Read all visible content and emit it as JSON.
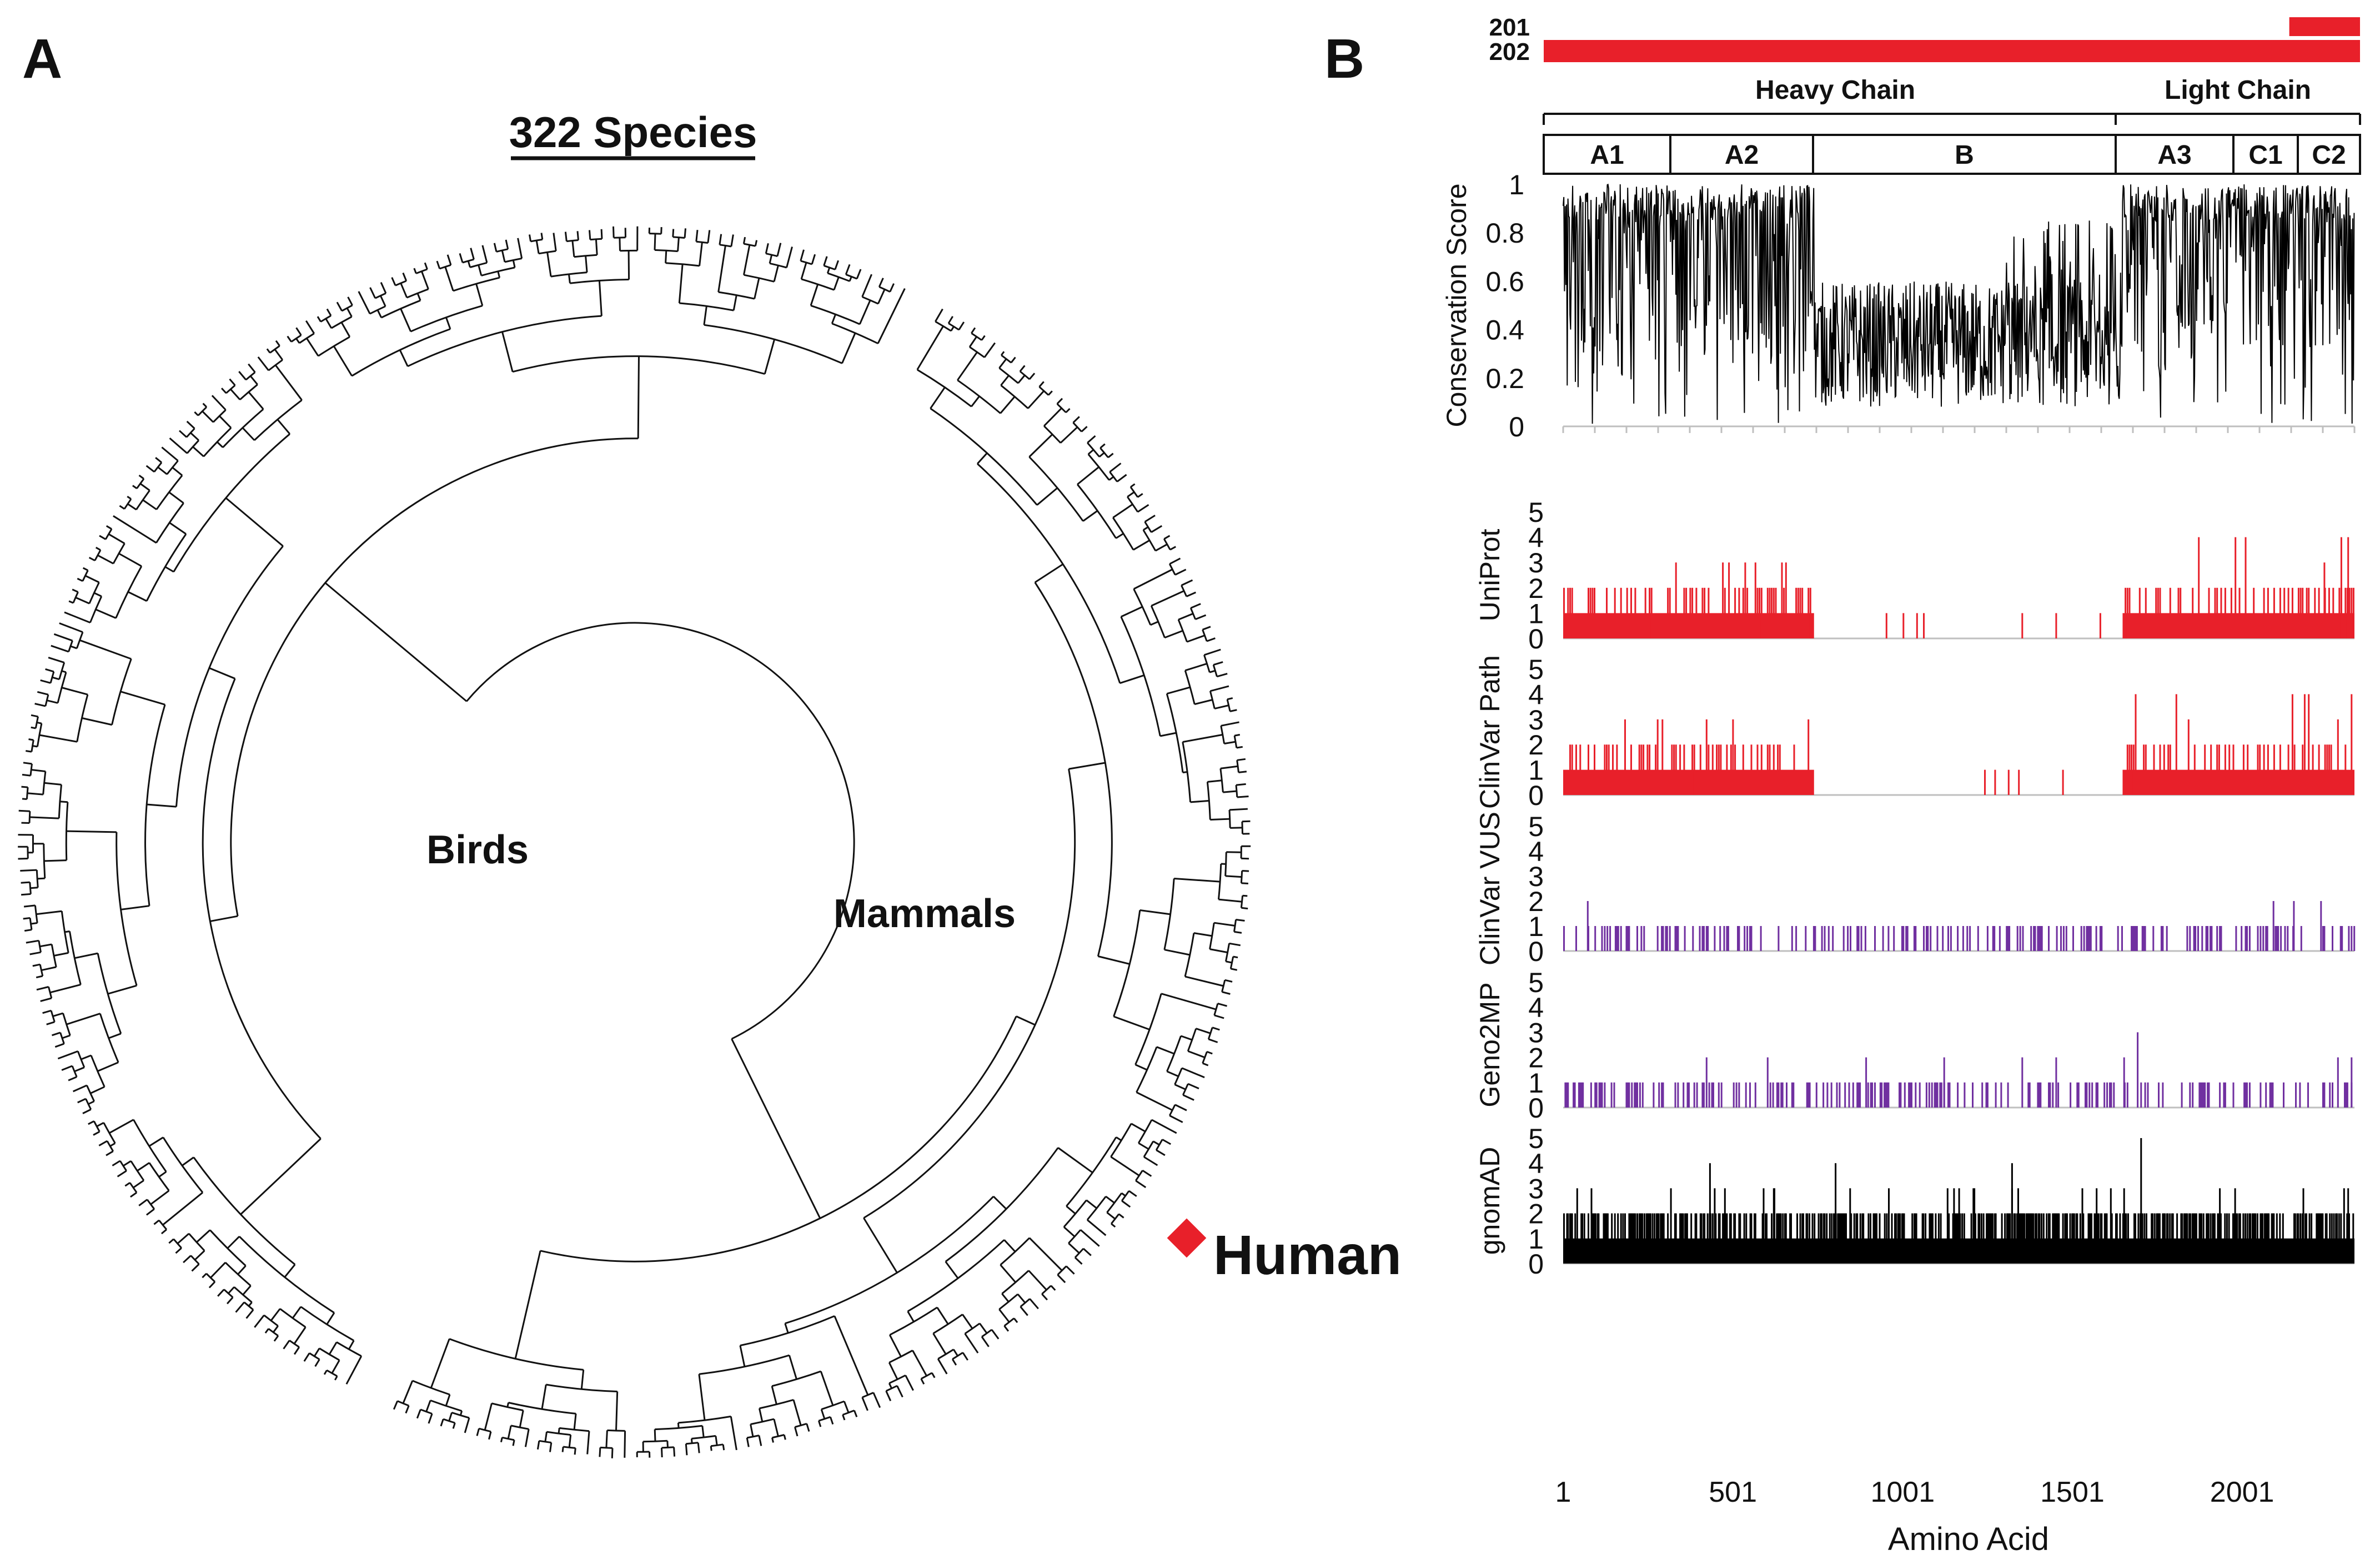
{
  "panel_a": {
    "label": "A",
    "title": "322 Species",
    "group_birds": "Birds",
    "group_mammals": "Mammals",
    "highlight_label": "Human",
    "highlight_color": "#e8202a"
  },
  "panel_b": {
    "label": "B",
    "isoforms": [
      {
        "name": "201",
        "start": 2140,
        "end": 2332
      },
      {
        "name": "202",
        "start": 1,
        "end": 2332
      }
    ],
    "chains": [
      {
        "name": "Heavy Chain",
        "start": 1,
        "end": 1648
      },
      {
        "name": "Light Chain",
        "start": 1649,
        "end": 2332
      }
    ],
    "domains": [
      {
        "name": "A1",
        "start": 1,
        "end": 372
      },
      {
        "name": "A2",
        "start": 373,
        "end": 740
      },
      {
        "name": "B",
        "start": 741,
        "end": 1648
      },
      {
        "name": "A3",
        "start": 1649,
        "end": 2019
      },
      {
        "name": "C1",
        "start": 2020,
        "end": 2172
      },
      {
        "name": "C2",
        "start": 2173,
        "end": 2332
      }
    ],
    "colors": {
      "red": "#e8202a",
      "purple": "#7030a0",
      "black": "#000000",
      "axis": "#bfbfbf"
    }
  },
  "chart_data": [
    {
      "type": "line",
      "title": "",
      "ylabel": "Conservation Score",
      "xlabel": "",
      "ylim": [
        0,
        1
      ],
      "yticks": [
        "0",
        "0.2",
        "0.4",
        "0.6",
        "0.8",
        "1"
      ],
      "xlim": [
        1,
        2332
      ],
      "series": [
        {
          "name": "Conservation Score",
          "note": "per-residue conservation, ~0.4-1.0 in A1/A2/A3/C1/C2, ~0.1-0.6 in B domain"
        }
      ]
    },
    {
      "type": "bar",
      "ylabel": "UniProt",
      "ylim": [
        0,
        5
      ],
      "yticks": [
        "0",
        "1",
        "2",
        "3",
        "4",
        "5"
      ],
      "color": "#e8202a",
      "regions": [
        [
          1,
          740,
          1,
          3
        ],
        [
          1649,
          2332,
          1,
          4
        ]
      ],
      "sparse": [
        [
          951,
          1
        ],
        [
          1001,
          1
        ],
        [
          1041,
          1
        ],
        [
          1061,
          1
        ],
        [
          1351,
          1
        ],
        [
          1451,
          1
        ],
        [
          1581,
          1
        ]
      ],
      "peaks": [
        [
          2241,
          3
        ],
        [
          2291,
          4
        ],
        [
          2311,
          4
        ]
      ]
    },
    {
      "type": "bar",
      "ylabel": "ClinVar Path",
      "ylim": [
        0,
        5
      ],
      "yticks": [
        "0",
        "1",
        "2",
        "3",
        "4",
        "5"
      ],
      "color": "#e8202a",
      "regions": [
        [
          1,
          740,
          1,
          3
        ],
        [
          1649,
          2332,
          1,
          4
        ]
      ],
      "sparse": [
        [
          1241,
          1
        ],
        [
          1271,
          1
        ],
        [
          1311,
          1
        ],
        [
          1341,
          1
        ],
        [
          1471,
          1
        ]
      ],
      "peaks": [
        [
          291,
          3
        ],
        [
          721,
          3
        ],
        [
          1841,
          3
        ],
        [
          2281,
          3
        ],
        [
          2321,
          4
        ]
      ]
    },
    {
      "type": "bar",
      "ylabel": "ClinVar VUS",
      "ylim": [
        0,
        5
      ],
      "yticks": [
        "0",
        "1",
        "2",
        "3",
        "4",
        "5"
      ],
      "color": "#7030a0",
      "spread": [
        [
          1,
          2332,
          1
        ]
      ],
      "peaks": [
        [
          71,
          2
        ],
        [
          2091,
          2
        ],
        [
          2151,
          2
        ],
        [
          2231,
          2
        ]
      ]
    },
    {
      "type": "bar",
      "ylabel": "Geno2MP",
      "ylim": [
        0,
        5
      ],
      "yticks": [
        "0",
        "1",
        "2",
        "3",
        "4",
        "5"
      ],
      "color": "#7030a0",
      "spread": [
        [
          1,
          2332,
          1
        ]
      ],
      "peaks": [
        [
          421,
          2
        ],
        [
          601,
          2
        ],
        [
          891,
          2
        ],
        [
          1121,
          2
        ],
        [
          1351,
          2
        ],
        [
          1451,
          2
        ],
        [
          1651,
          2
        ],
        [
          1691,
          3
        ],
        [
          2281,
          2
        ],
        [
          2321,
          2
        ]
      ]
    },
    {
      "type": "bar",
      "ylabel": "gnomAD",
      "ylim": [
        0,
        5
      ],
      "yticks": [
        "0",
        "1",
        "2",
        "3",
        "4",
        "5"
      ],
      "color": "#000000",
      "dense": [
        [
          1,
          2332,
          1,
          2
        ]
      ],
      "peaks": [
        [
          431,
          4
        ],
        [
          621,
          3
        ],
        [
          801,
          4
        ],
        [
          1131,
          3
        ],
        [
          1321,
          4
        ],
        [
          1701,
          5
        ],
        [
          2311,
          3
        ]
      ]
    }
  ],
  "x_axis": {
    "label": "Amino Acid",
    "ticks": [
      {
        "value": 1,
        "label": "1"
      },
      {
        "value": 501,
        "label": "501"
      },
      {
        "value": 1001,
        "label": "1001"
      },
      {
        "value": 1501,
        "label": "1501"
      },
      {
        "value": 2001,
        "label": "2001"
      }
    ]
  }
}
